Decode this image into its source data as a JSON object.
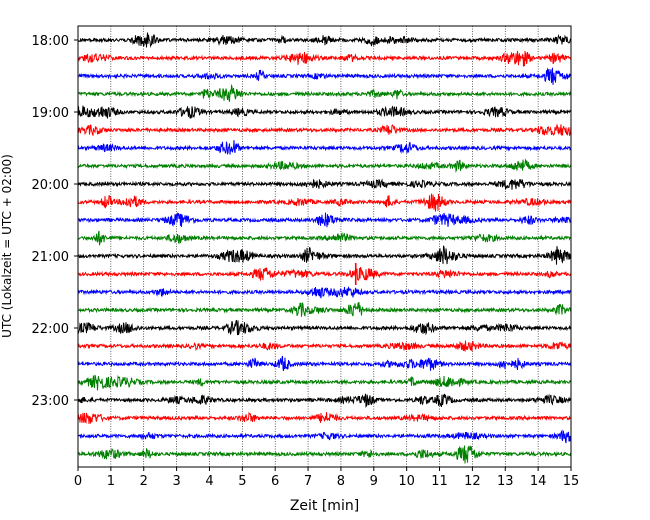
{
  "chart_data": {
    "type": "line",
    "title": "",
    "xlabel": "Zeit  [min]",
    "ylabel": "UTC (Lokalzeit = UTC + 02:00)",
    "xlim": [
      0,
      15
    ],
    "x_ticks": [
      "0",
      "1",
      "2",
      "3",
      "4",
      "5",
      "6",
      "7",
      "8",
      "9",
      "10",
      "11",
      "12",
      "13",
      "14",
      "15"
    ],
    "y_tick_labels": [
      "18:00",
      "19:00",
      "20:00",
      "21:00",
      "22:00",
      "23:00"
    ],
    "grid": "vertical dotted lines at each minute",
    "trace_interval_minutes": 15,
    "traces": [
      {
        "start": "18:00",
        "color": "#000000"
      },
      {
        "start": "18:15",
        "color": "#ff0000"
      },
      {
        "start": "18:30",
        "color": "#0000ff"
      },
      {
        "start": "18:45",
        "color": "#008000"
      },
      {
        "start": "19:00",
        "color": "#000000"
      },
      {
        "start": "19:15",
        "color": "#ff0000"
      },
      {
        "start": "19:30",
        "color": "#0000ff"
      },
      {
        "start": "19:45",
        "color": "#008000"
      },
      {
        "start": "20:00",
        "color": "#000000"
      },
      {
        "start": "20:15",
        "color": "#ff0000"
      },
      {
        "start": "20:30",
        "color": "#0000ff"
      },
      {
        "start": "20:45",
        "color": "#008000"
      },
      {
        "start": "21:00",
        "color": "#000000"
      },
      {
        "start": "21:15",
        "color": "#ff0000"
      },
      {
        "start": "21:30",
        "color": "#0000ff"
      },
      {
        "start": "21:45",
        "color": "#008000"
      },
      {
        "start": "22:00",
        "color": "#000000"
      },
      {
        "start": "22:15",
        "color": "#ff0000"
      },
      {
        "start": "22:30",
        "color": "#0000ff"
      },
      {
        "start": "22:45",
        "color": "#008000"
      },
      {
        "start": "23:00",
        "color": "#000000"
      },
      {
        "start": "23:15",
        "color": "#ff0000"
      },
      {
        "start": "23:30",
        "color": "#0000ff"
      },
      {
        "start": "23:45",
        "color": "#008000"
      }
    ],
    "notable_events": [
      {
        "trace": "21:15",
        "minute": 8.45,
        "description": "short high-amplitude spike"
      }
    ]
  }
}
